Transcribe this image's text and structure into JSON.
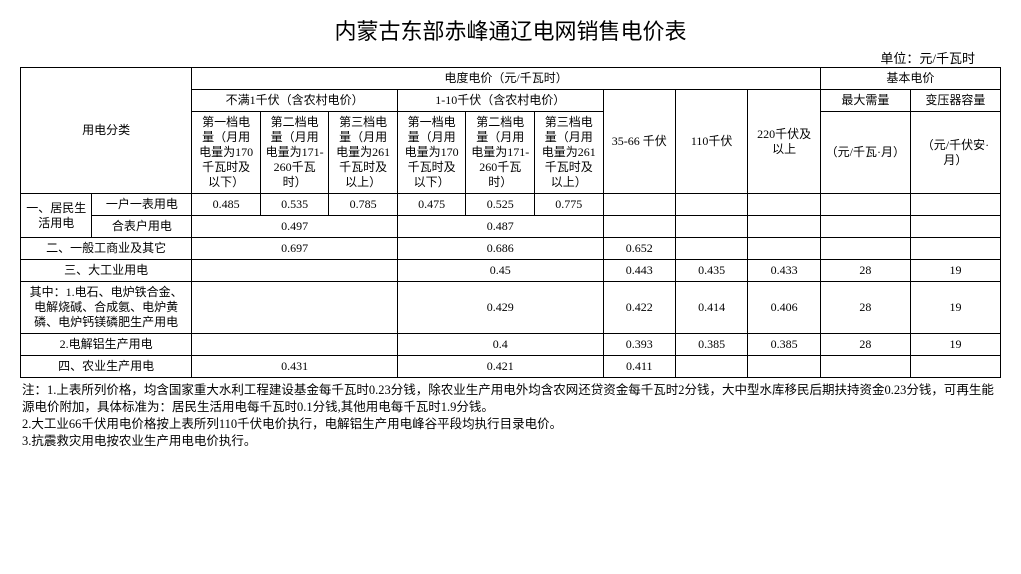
{
  "title": "内蒙古东部赤峰通辽电网销售电价表",
  "unit_label": "单位：元/千瓦时",
  "header": {
    "cat": "用电分类",
    "energy_price": "电度电价（元/千瓦时）",
    "basic_price": "基本电价",
    "sub_lt1kv": "不满1千伏（含农村电价）",
    "sub_1_10kv": "1-10千伏（含农村电价）",
    "kv35_66": "35-66\n千伏",
    "kv110": "110千伏",
    "kv220": "220千伏及以上",
    "max_demand": "最大需量",
    "trans_cap": "变压器容量",
    "tier1_a": "第一档电量（月用电量为170千瓦时及以下）",
    "tier2_a": "第二档电量（月用电量为171-260千瓦时）",
    "tier3_a": "第三档电量（月用电量为261千瓦时及以上）",
    "tier1_b": "第一档电量（月用电量为170千瓦时及以下）",
    "tier2_b": "第二档电量（月用电量为171-260千瓦时）",
    "tier3_b": "第三档电量（月用电量为261千瓦时及以上）",
    "unit_demand": "（元/千瓦·月）",
    "unit_cap": "（元/千伏安·月）"
  },
  "rows": {
    "res_label": "一、居民生活用电",
    "res_single": "一户一表用电",
    "res_combined": "合表户用电",
    "r1": {
      "a1": "0.485",
      "a2": "0.535",
      "a3": "0.785",
      "b1": "0.475",
      "b2": "0.525",
      "b3": "0.775"
    },
    "r2": {
      "a": "0.497",
      "b": "0.487"
    },
    "comm_label": "二、一般工商业及其它",
    "r3": {
      "a": "0.697",
      "b": "0.686",
      "c": "0.652"
    },
    "ind_label": "三、大工业用电",
    "r4": {
      "b": "0.45",
      "c": "0.443",
      "d": "0.435",
      "e": "0.433",
      "f": "28",
      "g": "19"
    },
    "ind_sub1": "其中：1.电石、电炉铁合金、电解烧碱、合成氨、电炉黄磷、电炉钙镁磷肥生产用电",
    "r5": {
      "b": "0.429",
      "c": "0.422",
      "d": "0.414",
      "e": "0.406",
      "f": "28",
      "g": "19"
    },
    "ind_sub2": "2.电解铝生产用电",
    "r6": {
      "b": "0.4",
      "c": "0.393",
      "d": "0.385",
      "e": "0.385",
      "f": "28",
      "g": "19"
    },
    "agri_label": "四、农业生产用电",
    "r7": {
      "a": "0.431",
      "b": "0.421",
      "c": "0.411"
    }
  },
  "notes": {
    "n1": " 注：1.上表所列价格，均含国家重大水利工程建设基金每千瓦时0.23分钱，除农业生产用电外均含农网还贷资金每千瓦时2分钱，大中型水库移民后期扶持资金0.23分钱，可再生能源电价附加，具体标准为：居民生活用电每千瓦时0.1分钱,其他用电每千瓦时1.9分钱。",
    "n2": "2.大工业66千伏用电价格按上表所列110千伏电价执行，电解铝生产用电峰谷平段均执行目录电价。",
    "n3": "3.抗震救灾用电按农业生产用电电价执行。"
  }
}
